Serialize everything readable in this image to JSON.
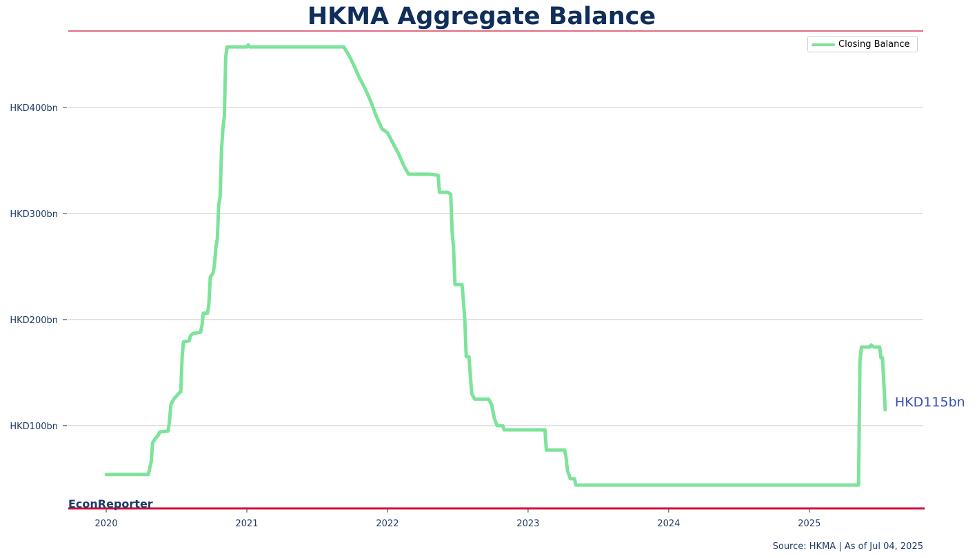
{
  "chart_data": {
    "type": "line",
    "title": "HKMA Aggregate Balance",
    "ylabel": "",
    "xlabel": "",
    "y_ticks": [
      {
        "value": 100,
        "label": "HKD100bn"
      },
      {
        "value": 200,
        "label": "HKD200bn"
      },
      {
        "value": 300,
        "label": "HKD300bn"
      },
      {
        "value": 400,
        "label": "HKD400bn"
      }
    ],
    "x_ticks": [
      {
        "value": 2020.0,
        "label": "2020"
      },
      {
        "value": 2021.0,
        "label": "2021"
      },
      {
        "value": 2022.0,
        "label": "2022"
      },
      {
        "value": 2023.0,
        "label": "2023"
      },
      {
        "value": 2024.0,
        "label": "2024"
      },
      {
        "value": 2025.0,
        "label": "2025"
      }
    ],
    "xlim": [
      2019.73,
      2025.81
    ],
    "ylim": [
      22,
      472
    ],
    "grid": "horizontal",
    "legend_position": "top-right",
    "series": [
      {
        "name": "Closing Balance",
        "color": "#7ee39a",
        "points": [
          [
            2020.0,
            54
          ],
          [
            2020.3,
            54
          ],
          [
            2020.32,
            66
          ],
          [
            2020.33,
            84
          ],
          [
            2020.35,
            88
          ],
          [
            2020.37,
            91
          ],
          [
            2020.38,
            94
          ],
          [
            2020.44,
            95
          ],
          [
            2020.45,
            104
          ],
          [
            2020.46,
            120
          ],
          [
            2020.48,
            125
          ],
          [
            2020.5,
            128
          ],
          [
            2020.52,
            131
          ],
          [
            2020.53,
            132
          ],
          [
            2020.54,
            165
          ],
          [
            2020.55,
            179
          ],
          [
            2020.59,
            180
          ],
          [
            2020.6,
            185
          ],
          [
            2020.62,
            187
          ],
          [
            2020.67,
            188
          ],
          [
            2020.68,
            194
          ],
          [
            2020.69,
            206
          ],
          [
            2020.72,
            206
          ],
          [
            2020.73,
            214
          ],
          [
            2020.74,
            240
          ],
          [
            2020.76,
            244
          ],
          [
            2020.77,
            252
          ],
          [
            2020.78,
            268
          ],
          [
            2020.79,
            276
          ],
          [
            2020.8,
            308
          ],
          [
            2020.81,
            316
          ],
          [
            2020.82,
            360
          ],
          [
            2020.83,
            380
          ],
          [
            2020.84,
            392
          ],
          [
            2020.85,
            448
          ],
          [
            2020.86,
            457
          ],
          [
            2021.0,
            457
          ],
          [
            2021.01,
            459
          ],
          [
            2021.02,
            457
          ],
          [
            2021.69,
            457
          ],
          [
            2021.73,
            448
          ],
          [
            2021.76,
            440
          ],
          [
            2021.8,
            428
          ],
          [
            2021.84,
            418
          ],
          [
            2021.88,
            406
          ],
          [
            2021.92,
            392
          ],
          [
            2021.96,
            380
          ],
          [
            2022.0,
            376
          ],
          [
            2022.04,
            366
          ],
          [
            2022.08,
            356
          ],
          [
            2022.12,
            344
          ],
          [
            2022.15,
            337
          ],
          [
            2022.3,
            337
          ],
          [
            2022.36,
            336
          ],
          [
            2022.37,
            320
          ],
          [
            2022.43,
            320
          ],
          [
            2022.45,
            318
          ],
          [
            2022.46,
            282
          ],
          [
            2022.47,
            268
          ],
          [
            2022.48,
            233
          ],
          [
            2022.53,
            233
          ],
          [
            2022.54,
            218
          ],
          [
            2022.55,
            200
          ],
          [
            2022.56,
            165
          ],
          [
            2022.58,
            165
          ],
          [
            2022.59,
            146
          ],
          [
            2022.6,
            130
          ],
          [
            2022.62,
            125
          ],
          [
            2022.72,
            125
          ],
          [
            2022.74,
            120
          ],
          [
            2022.76,
            107
          ],
          [
            2022.78,
            100
          ],
          [
            2022.82,
            100
          ],
          [
            2022.83,
            96
          ],
          [
            2023.12,
            96
          ],
          [
            2023.13,
            77
          ],
          [
            2023.26,
            77
          ],
          [
            2023.27,
            70
          ],
          [
            2023.28,
            58
          ],
          [
            2023.3,
            50
          ],
          [
            2023.33,
            50
          ],
          [
            2023.34,
            44
          ],
          [
            2025.35,
            44
          ],
          [
            2025.36,
            160
          ],
          [
            2025.37,
            174
          ],
          [
            2025.43,
            174
          ],
          [
            2025.44,
            176
          ],
          [
            2025.46,
            174
          ],
          [
            2025.5,
            174
          ],
          [
            2025.51,
            164
          ],
          [
            2025.52,
            164
          ],
          [
            2025.53,
            140
          ],
          [
            2025.54,
            115
          ]
        ]
      }
    ],
    "end_label": "HKD115bn",
    "brand": "EconReporter",
    "source": "Source: HKMA | As of Jul 04, 2025"
  }
}
